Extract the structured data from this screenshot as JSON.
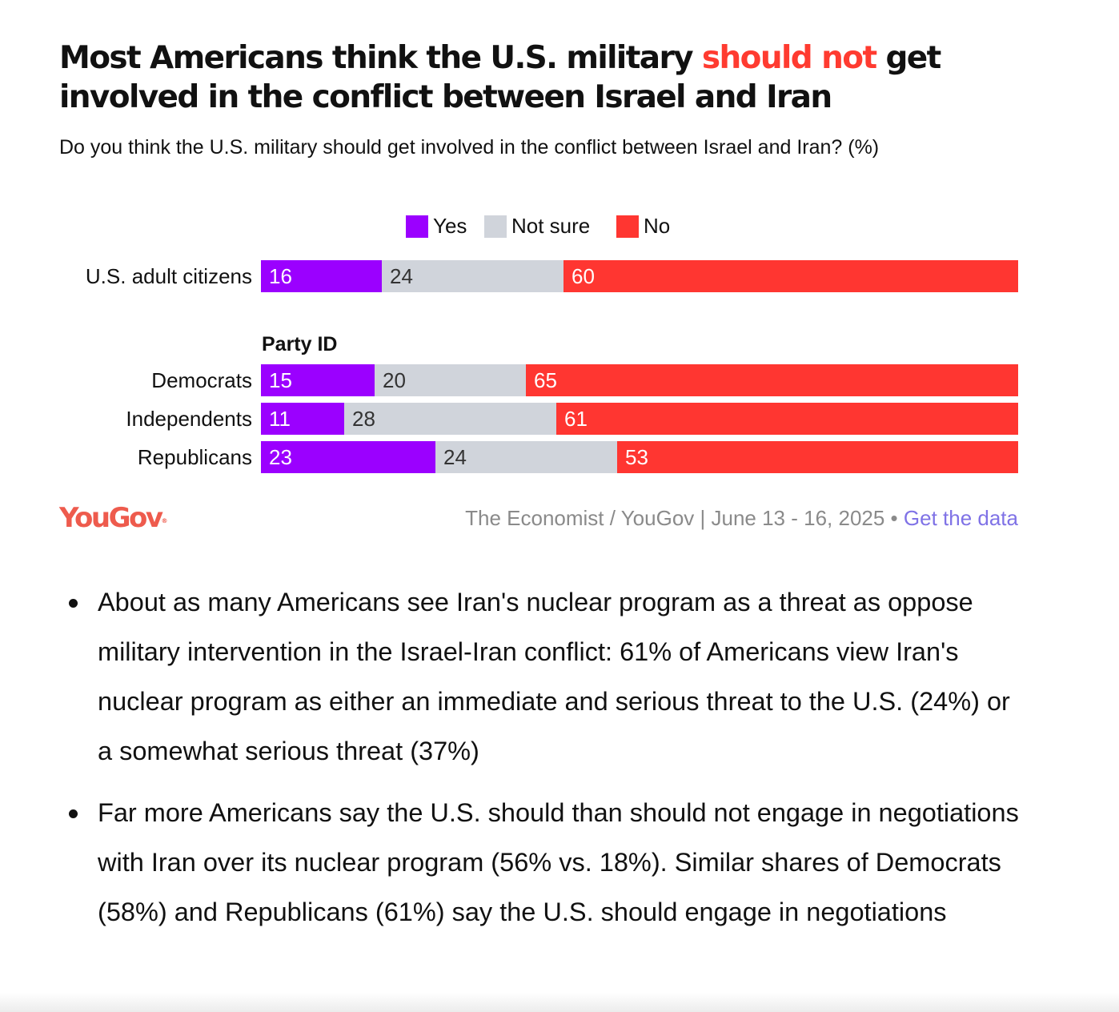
{
  "title": {
    "part1": "Most Americans think the U.S. military ",
    "highlight": "should not",
    "part2": " get involved in the conflict between Israel and Iran"
  },
  "subtitle": "Do you think the U.S. military should get involved in the conflict between Israel and Iran? (%)",
  "colors": {
    "yes": "#9b00ff",
    "not_sure": "#d0d4db",
    "no": "#ff3631",
    "highlight": "#ff3b30",
    "logo": "#ee5b4d",
    "link": "#7f72e6"
  },
  "chart_data": {
    "type": "bar",
    "orientation": "horizontal",
    "stacked": true,
    "unit": "%",
    "legend_position": "top",
    "categories": [
      "U.S. adult citizens",
      "Democrats",
      "Independents",
      "Republicans"
    ],
    "group_heading": "Party ID",
    "series": [
      {
        "name": "Yes",
        "values": [
          16,
          15,
          11,
          23
        ]
      },
      {
        "name": "Not sure",
        "values": [
          24,
          20,
          28,
          24
        ]
      },
      {
        "name": "No",
        "values": [
          60,
          65,
          61,
          53
        ]
      }
    ]
  },
  "footer": {
    "logo": "YouGov",
    "logo_mark": "®",
    "source": "The Economist / YouGov | June 13 - 16, 2025 • ",
    "link_text": "Get the data"
  },
  "bullets": [
    "About as many Americans see Iran's nuclear program as a threat as oppose military intervention in the Israel-Iran conflict: 61% of Americans view Iran's nuclear program as either an immediate and serious threat to the U.S. (24%) or a somewhat serious threat (37%)",
    "Far more Americans say the U.S. should than should not engage in negotiations with Iran over its nuclear program (56% vs. 18%). Similar shares of Democrats (58%) and Republicans (61%) say the U.S. should engage in negotiations"
  ]
}
